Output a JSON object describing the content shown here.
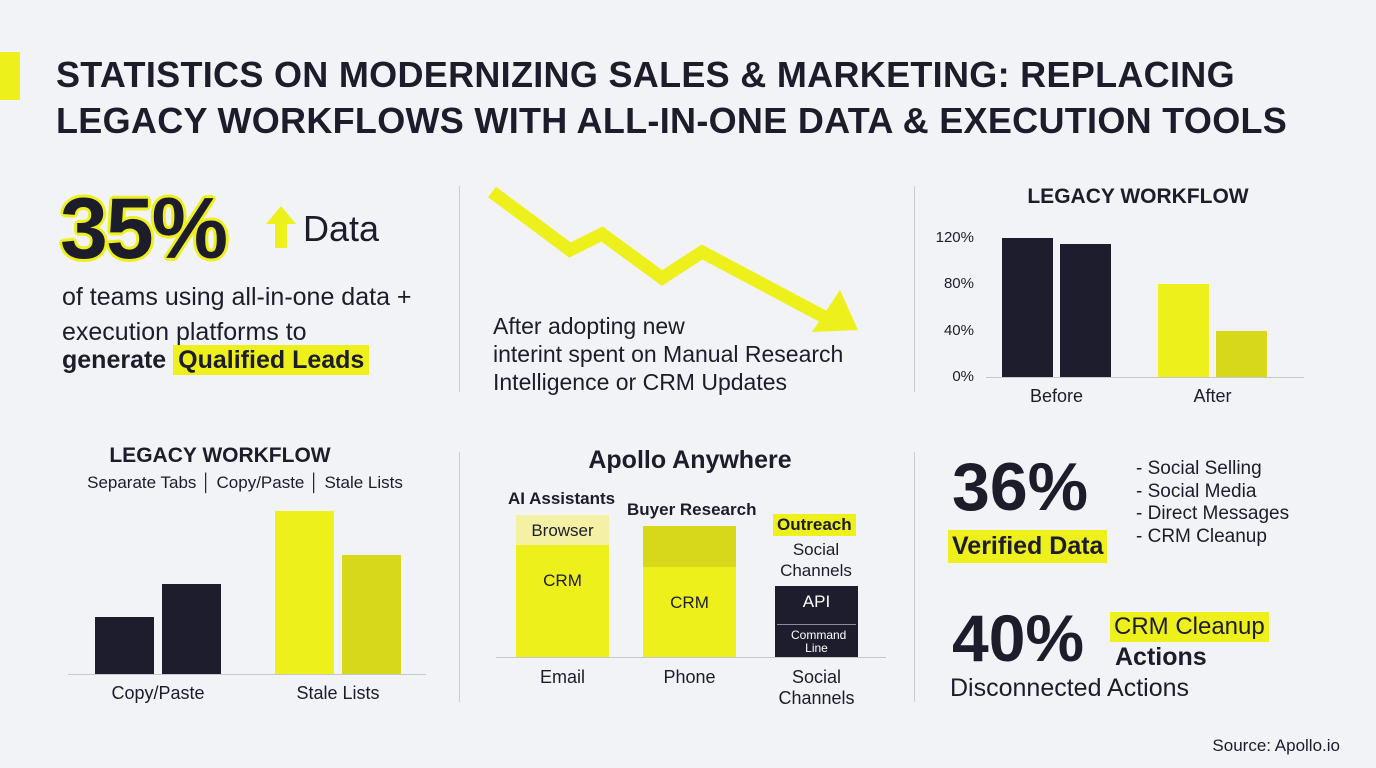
{
  "title": "STATISTICS ON MODERNIZING SALES & MARKETING: REPLACING LEGACY WORKFLOWS WITH ALL-IN-ONE DATA & EXECUTION TOOLS",
  "stat1": {
    "value": "35%",
    "arrow_icon": "arrow-up-icon",
    "label": "Data",
    "line": "of teams using all-in-one data + execution platforms to",
    "bold_prefix": "generate",
    "highlight": "Qualified Leads"
  },
  "trend": {
    "arrow_icon": "trend-down-arrow-icon",
    "line1": "After adopting new",
    "line2": "interint spent on Manual Research",
    "line3": "Intelligence or CRM Updates"
  },
  "chart_data": [
    {
      "type": "bar",
      "title": "LEGACY WORKFLOW",
      "categories": [
        "Before",
        "After"
      ],
      "series": [
        {
          "values": [
            120,
            80
          ]
        },
        {
          "values": [
            115,
            40
          ]
        }
      ],
      "series_colors": [
        "#1d1d2e",
        "#1d1d2e",
        "#eef01c",
        "#d8d81a"
      ],
      "yticks": [
        "120%",
        "80%",
        "40%",
        "0%"
      ],
      "ylim": [
        0,
        120
      ],
      "grid": false
    },
    {
      "type": "bar",
      "title": "LEGACY WORKFLOW",
      "subtitle": "Separate Tabs │ Copy/Paste │ Stale Lists",
      "categories": [
        "Copy/Paste",
        "Stale Lists"
      ],
      "series": [
        {
          "values": [
            35,
            100
          ]
        },
        {
          "values": [
            55,
            73
          ]
        }
      ],
      "series_colors": [
        "#1d1d2e",
        "#1d1d2e",
        "#eef01c",
        "#d8d81a"
      ],
      "ylim": [
        0,
        100
      ],
      "grid": false
    },
    {
      "type": "bar",
      "title": "Apollo Anywhere",
      "stacked": true,
      "categories": [
        "Email",
        "Phone",
        "Social Channels"
      ],
      "column_headers": [
        "AI Assistants",
        "Buyer Research",
        "Outreach"
      ],
      "extra_labels": [
        "Social",
        "Channels"
      ],
      "stacks": [
        {
          "segments": [
            {
              "label": "CRM",
              "value": 112,
              "color": "#eef01c"
            },
            {
              "label": "Browser",
              "value": 30,
              "color": "#f4f1a4"
            }
          ]
        },
        {
          "segments": [
            {
              "label": "CRM",
              "value": 90,
              "color": "#eef01c"
            },
            {
              "label": "",
              "value": 41,
              "color": "#d8d81a"
            }
          ]
        },
        {
          "segments": [
            {
              "label": "Command Line",
              "value": 33,
              "color": "#1d1d2e"
            },
            {
              "label": "API",
              "value": 38,
              "color": "#1d1d2e"
            }
          ]
        }
      ]
    }
  ],
  "stat3": {
    "value": "36%",
    "label": "Verified Data",
    "bullets": [
      "- Social Selling",
      "- Social Media",
      "- Direct Messages",
      "- CRM Cleanup"
    ]
  },
  "stat4": {
    "value": "40%",
    "highlight": "CRM Cleanup",
    "bold": "Actions",
    "line": "Disconnected Actions"
  },
  "source": "Source: Apollo.io",
  "colors": {
    "accent": "#eef01c",
    "accent_dark": "#d8d81a",
    "navy": "#1d1d2e",
    "background": "#f1f3f6"
  }
}
